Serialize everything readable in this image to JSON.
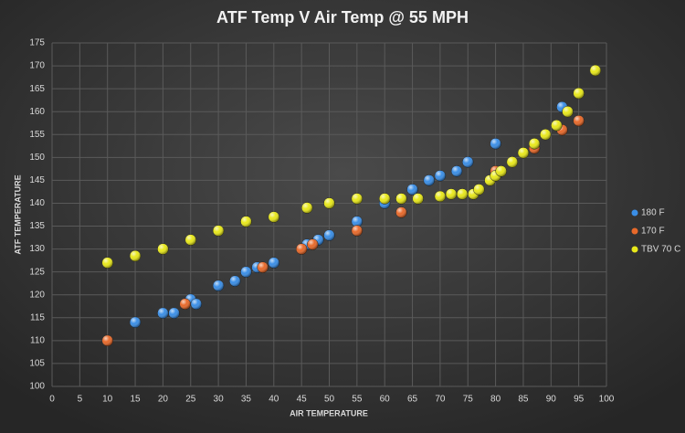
{
  "chart_data": {
    "type": "scatter",
    "title": "ATF Temp V Air Temp @ 55 MPH",
    "x_label": "AIR TEMPERATURE",
    "y_label": "ATF TEMPERATURE",
    "xlim": [
      0,
      100
    ],
    "xticks": [
      0,
      5,
      10,
      15,
      20,
      25,
      30,
      35,
      40,
      45,
      50,
      55,
      60,
      65,
      70,
      75,
      80,
      85,
      90,
      95,
      100
    ],
    "ylim": [
      100,
      175
    ],
    "yticks": [
      100,
      105,
      110,
      115,
      120,
      125,
      130,
      135,
      140,
      145,
      150,
      155,
      160,
      165,
      170,
      175
    ],
    "grid": true,
    "legend": "right",
    "series": [
      {
        "name": "180 F",
        "color": "#3a8ee6",
        "x": [
          15,
          20,
          22,
          25,
          26,
          30,
          33,
          35,
          37,
          40,
          46,
          48,
          50,
          55,
          60,
          65,
          68,
          70,
          73,
          75,
          80,
          92
        ],
        "values": [
          114,
          116,
          116,
          119,
          118,
          122,
          123,
          125,
          126,
          127,
          131,
          132,
          133,
          136,
          140,
          143,
          145,
          146,
          147,
          149,
          153,
          161
        ]
      },
      {
        "name": "170 F",
        "color": "#e8692a",
        "x": [
          10,
          24,
          38,
          45,
          47,
          55,
          63,
          80,
          87,
          92,
          95
        ],
        "values": [
          110,
          118,
          126,
          130,
          131,
          134,
          138,
          147,
          152,
          156,
          158
        ]
      },
      {
        "name": "TBV 70 C",
        "color": "#e8e81a",
        "x": [
          10,
          15,
          20,
          25,
          30,
          35,
          40,
          46,
          50,
          55,
          60,
          63,
          66,
          70,
          72,
          74,
          76,
          77,
          79,
          80,
          81,
          83,
          85,
          87,
          89,
          91,
          93,
          95,
          98
        ],
        "values": [
          127,
          128.5,
          130,
          132,
          134,
          136,
          137,
          139,
          140,
          141,
          141,
          141,
          141,
          141.5,
          142,
          142,
          142,
          143,
          145,
          146,
          147,
          149,
          151,
          153,
          155,
          157,
          160,
          164,
          169
        ]
      }
    ]
  }
}
